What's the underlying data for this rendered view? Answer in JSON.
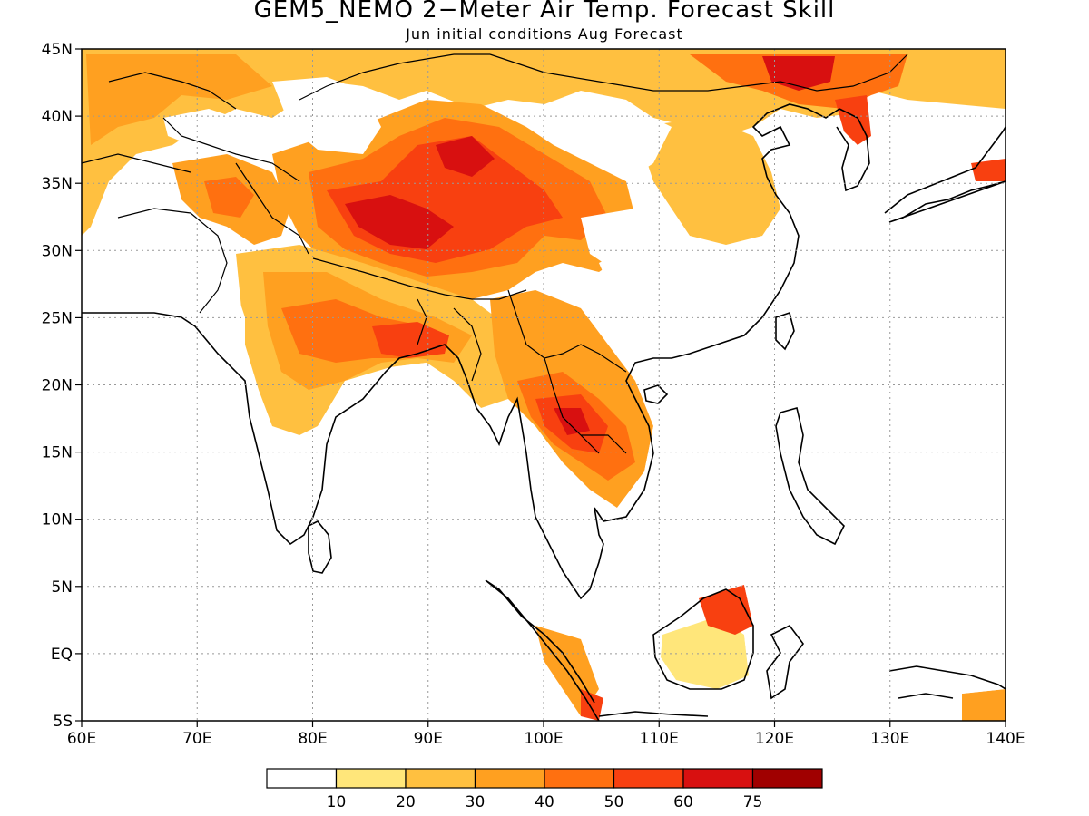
{
  "title": "GEM5_NEMO 2−Meter Air Temp. Forecast Skill",
  "subtitle": "Jun initial conditions  Aug Forecast",
  "map": {
    "lon_range": [
      60,
      140
    ],
    "lat_range": [
      -5,
      45
    ],
    "lon_ticks": [
      "60E",
      "70E",
      "80E",
      "90E",
      "100E",
      "110E",
      "120E",
      "130E",
      "140E"
    ],
    "lat_ticks": [
      "45N",
      "40N",
      "35N",
      "30N",
      "25N",
      "20N",
      "15N",
      "10N",
      "5N",
      "EQ",
      "5S"
    ],
    "gridlines": "dotted",
    "region": "South and East Asia"
  },
  "colorbar": {
    "labels": [
      "10",
      "20",
      "30",
      "40",
      "50",
      "60",
      "75"
    ],
    "colors": [
      "#ffffff",
      "#ffe67a",
      "#ffc040",
      "#ffa020",
      "#ff7010",
      "#f84010",
      "#d81010",
      "#a00000"
    ]
  }
}
